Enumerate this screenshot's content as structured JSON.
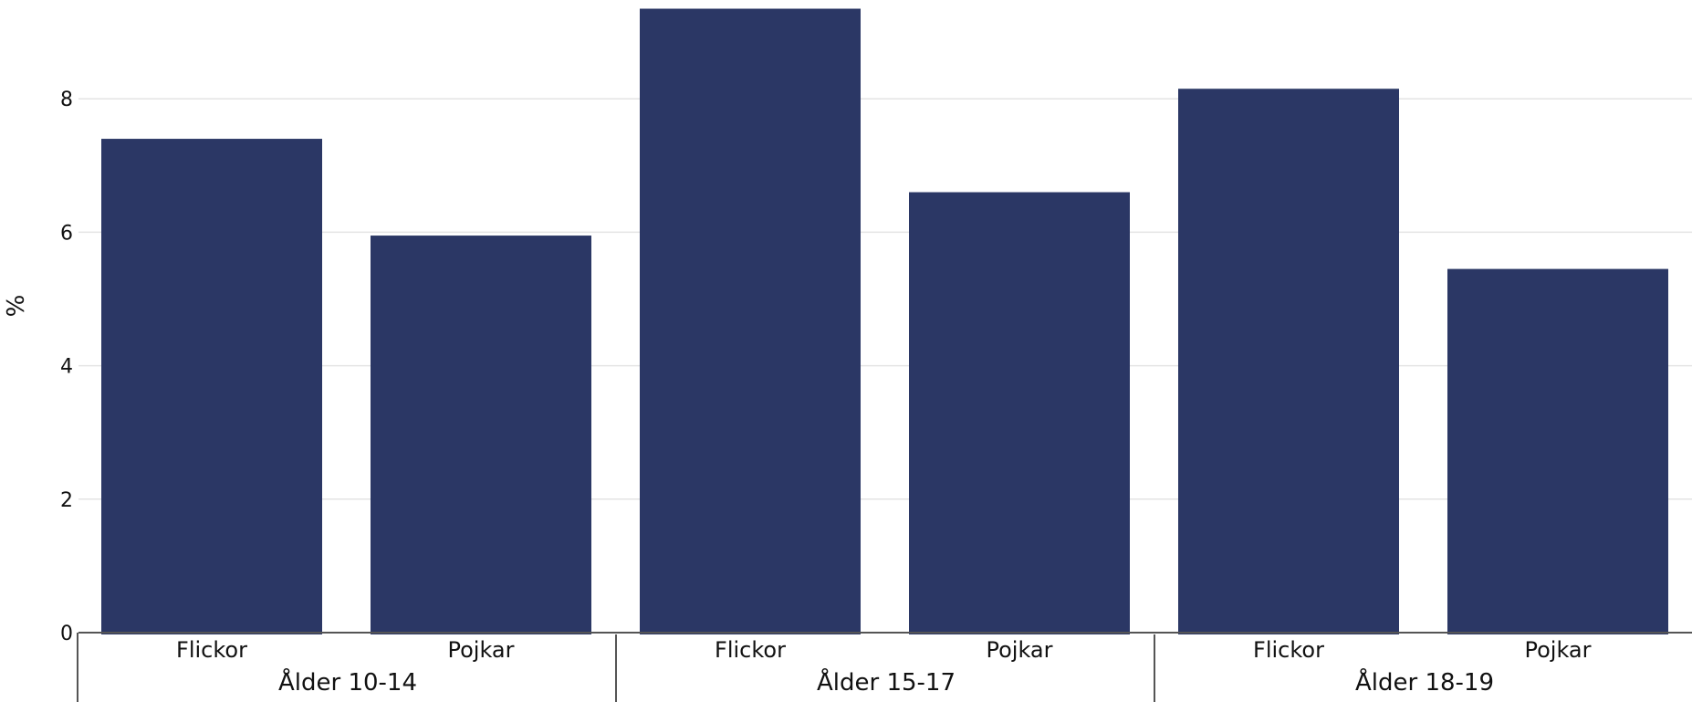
{
  "chart_data": {
    "type": "bar",
    "title": "",
    "xlabel": "",
    "ylabel": "%",
    "ylim": [
      0,
      9.4
    ],
    "yticks": [
      "0",
      "2",
      "4",
      "6",
      "8"
    ],
    "grid": true,
    "bar_color": "#2b3765",
    "groups": [
      {
        "label": "Ålder 10-14",
        "categories": [
          "Flickor",
          "Pojkar"
        ],
        "values": [
          7.4,
          5.95
        ]
      },
      {
        "label": "Ålder 15-17",
        "categories": [
          "Flickor",
          "Pojkar"
        ],
        "values": [
          9.35,
          6.6
        ]
      },
      {
        "label": "Ålder 18-19",
        "categories": [
          "Flickor",
          "Pojkar"
        ],
        "values": [
          8.15,
          5.45
        ]
      }
    ]
  }
}
